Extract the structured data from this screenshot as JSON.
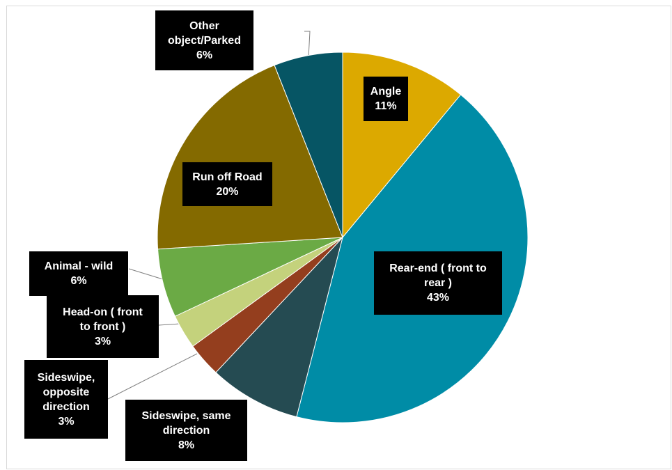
{
  "chart_data": {
    "type": "pie",
    "title": "",
    "start_angle_deg": 0,
    "direction": "clockwise",
    "slices": [
      {
        "label": "Angle",
        "value": 11,
        "color": "#DCA900"
      },
      {
        "label": "Rear-end ( front to rear )",
        "value": 43,
        "color": "#008CA6"
      },
      {
        "label": "Sideswipe, same direction",
        "value": 8,
        "color": "#254B52"
      },
      {
        "label": "Sideswipe, opposite direction",
        "value": 3,
        "color": "#943E1E"
      },
      {
        "label": "Head-on ( front to front )",
        "value": 3,
        "color": "#C4D27C"
      },
      {
        "label": "Animal  - wild",
        "value": 6,
        "color": "#6BAA45"
      },
      {
        "label": "Run off Road",
        "value": 20,
        "color": "#846A00"
      },
      {
        "label": "Other object/Parked",
        "value": 6,
        "color": "#065564"
      }
    ],
    "data_labels": [
      {
        "lines": [
          "Angle"
        ],
        "pct": "11%"
      },
      {
        "lines": [
          "Rear-end ( front to",
          "rear )"
        ],
        "pct": "43%"
      },
      {
        "lines": [
          "Sideswipe, same",
          "direction"
        ],
        "pct": "8%"
      },
      {
        "lines": [
          "Sideswipe,",
          "opposite",
          "direction"
        ],
        "pct": "3%"
      },
      {
        "lines": [
          "Head-on ( front",
          "to front )"
        ],
        "pct": "3%"
      },
      {
        "lines": [
          "Animal  - wild"
        ],
        "pct": "6%"
      },
      {
        "lines": [
          "Run off Road"
        ],
        "pct": "20%"
      },
      {
        "lines": [
          "Other",
          "object/Parked"
        ],
        "pct": "6%"
      }
    ]
  }
}
